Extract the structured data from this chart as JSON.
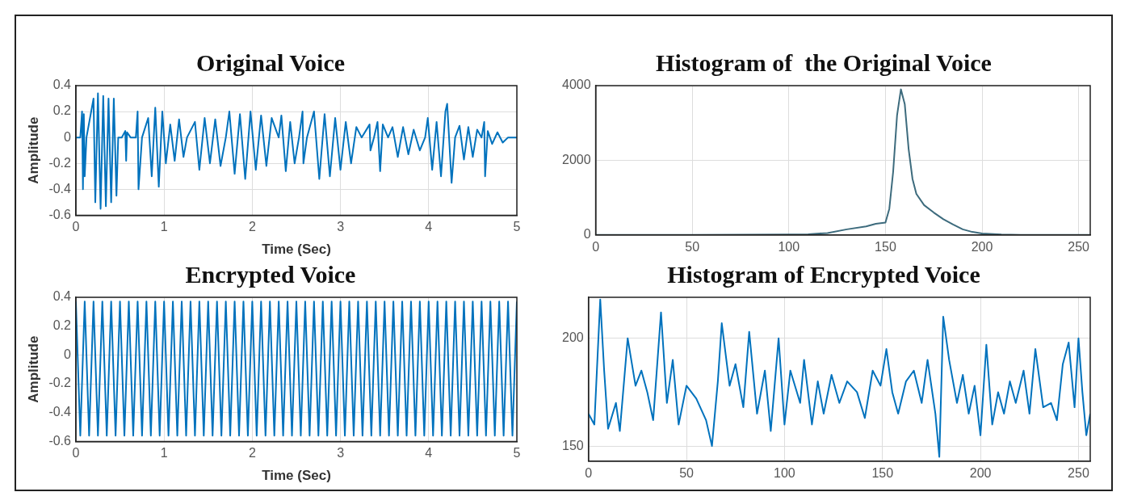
{
  "chart_data": [
    {
      "type": "line",
      "title": "Original Voice",
      "xlabel": "Time (Sec)",
      "ylabel": "Amplitude",
      "xlim": [
        0,
        5
      ],
      "ylim": [
        -0.6,
        0.4
      ],
      "xticks": [
        0,
        1,
        2,
        3,
        4,
        5
      ],
      "yticks": [
        -0.6,
        -0.4,
        -0.2,
        0,
        0.2,
        0.4
      ],
      "grid": true,
      "x": [
        0,
        0.05,
        0.07,
        0.08,
        0.09,
        0.1,
        0.12,
        0.2,
        0.22,
        0.25,
        0.28,
        0.31,
        0.34,
        0.37,
        0.4,
        0.43,
        0.46,
        0.48,
        0.52,
        0.56,
        0.57,
        0.58,
        0.62,
        0.68,
        0.7,
        0.71,
        0.75,
        0.82,
        0.86,
        0.9,
        0.94,
        0.98,
        1.02,
        1.07,
        1.12,
        1.17,
        1.22,
        1.26,
        1.35,
        1.4,
        1.46,
        1.52,
        1.58,
        1.64,
        1.7,
        1.74,
        1.8,
        1.86,
        1.92,
        1.98,
        2.04,
        2.1,
        2.16,
        2.22,
        2.3,
        2.33,
        2.38,
        2.43,
        2.48,
        2.53,
        2.57,
        2.58,
        2.62,
        2.7,
        2.76,
        2.82,
        2.88,
        2.94,
        3.0,
        3.06,
        3.12,
        3.18,
        3.24,
        3.33,
        3.34,
        3.38,
        3.42,
        3.45,
        3.48,
        3.54,
        3.59,
        3.65,
        3.71,
        3.77,
        3.83,
        3.9,
        3.96,
        3.99,
        4.04,
        4.09,
        4.14,
        4.19,
        4.21,
        4.26,
        4.3,
        4.35,
        4.4,
        4.45,
        4.5,
        4.55,
        4.6,
        4.63,
        4.64,
        4.67,
        4.72,
        4.78,
        4.84,
        4.9,
        5.0
      ],
      "series": [
        {
          "color": "#0072bd",
          "values": [
            0,
            0,
            0.2,
            -0.4,
            0.18,
            -0.3,
            0,
            0.3,
            -0.5,
            0.34,
            -0.55,
            0.32,
            -0.53,
            0.3,
            -0.5,
            0.3,
            -0.45,
            0,
            0,
            0.05,
            -0.18,
            0.04,
            0,
            0,
            0.2,
            -0.4,
            0,
            0.15,
            -0.3,
            0.23,
            -0.38,
            0.2,
            -0.2,
            0.1,
            -0.18,
            0.14,
            -0.15,
            0,
            0.12,
            -0.25,
            0.15,
            -0.2,
            0.14,
            -0.22,
            0,
            0.2,
            -0.28,
            0.18,
            -0.32,
            0.2,
            -0.25,
            0.17,
            -0.22,
            0.15,
            0,
            0.17,
            -0.26,
            0.12,
            -0.2,
            0,
            0.2,
            -0.2,
            0,
            0.2,
            -0.32,
            0.18,
            -0.3,
            0.15,
            -0.25,
            0.12,
            -0.2,
            0.08,
            0,
            0.1,
            -0.1,
            0,
            0.12,
            -0.26,
            0.1,
            0,
            0.08,
            -0.15,
            0.08,
            -0.13,
            0.06,
            -0.1,
            0,
            0.15,
            -0.25,
            0.12,
            -0.3,
            0.2,
            0.26,
            -0.35,
            0,
            0.09,
            -0.17,
            0.08,
            -0.15,
            0.06,
            0,
            0.12,
            -0.3,
            0.05,
            -0.05,
            0.04,
            -0.04,
            0,
            0
          ]
        }
      ]
    },
    {
      "type": "line",
      "title": "Histogram of  the Original Voice",
      "xlim": [
        0,
        256
      ],
      "ylim": [
        0,
        4000
      ],
      "xticks": [
        0,
        50,
        100,
        150,
        200,
        250
      ],
      "yticks": [
        0,
        2000,
        4000
      ],
      "grid": true,
      "x": [
        0,
        50,
        100,
        110,
        120,
        130,
        140,
        145,
        150,
        152,
        154,
        156,
        158,
        160,
        162,
        164,
        166,
        170,
        175,
        180,
        185,
        190,
        195,
        200,
        210,
        220,
        256
      ],
      "series": [
        {
          "color": "#3d6b7d",
          "values": [
            0,
            0,
            10,
            20,
            50,
            150,
            230,
            300,
            330,
            700,
            1700,
            3200,
            3900,
            3500,
            2300,
            1500,
            1100,
            800,
            600,
            420,
            280,
            150,
            80,
            40,
            10,
            0,
            0
          ]
        }
      ]
    },
    {
      "type": "line",
      "title": "Encrypted Voice",
      "xlabel": "Time (Sec)",
      "ylabel": "Amplitude",
      "xlim": [
        0,
        5
      ],
      "ylim": [
        -0.6,
        0.4
      ],
      "xticks": [
        0,
        1,
        2,
        3,
        4,
        5
      ],
      "yticks": [
        -0.6,
        -0.4,
        -0.2,
        0,
        0.2,
        0.4
      ],
      "grid": true,
      "x": [
        0,
        0.05,
        0.1,
        0.15,
        0.2,
        0.25,
        0.3,
        0.35,
        0.4,
        0.45,
        0.5,
        0.55,
        0.6,
        0.65,
        0.7,
        0.75,
        0.8,
        0.85,
        0.9,
        0.95,
        1,
        1.05,
        1.1,
        1.15,
        1.2,
        1.25,
        1.3,
        1.35,
        1.4,
        1.45,
        1.5,
        1.55,
        1.6,
        1.65,
        1.7,
        1.75,
        1.8,
        1.85,
        1.9,
        1.95,
        2,
        2.05,
        2.1,
        2.15,
        2.2,
        2.25,
        2.3,
        2.35,
        2.4,
        2.45,
        2.5,
        2.55,
        2.6,
        2.65,
        2.7,
        2.75,
        2.8,
        2.85,
        2.9,
        2.95,
        3,
        3.05,
        3.1,
        3.15,
        3.2,
        3.25,
        3.3,
        3.35,
        3.4,
        3.45,
        3.5,
        3.55,
        3.6,
        3.65,
        3.7,
        3.75,
        3.8,
        3.85,
        3.9,
        3.95,
        4,
        4.05,
        4.1,
        4.15,
        4.2,
        4.25,
        4.3,
        4.35,
        4.4,
        4.45,
        4.5,
        4.55,
        4.6,
        4.65,
        4.7,
        4.75,
        4.8,
        4.85,
        4.9,
        4.95,
        5
      ],
      "series": [
        {
          "color": "#0072bd",
          "values": [
            0.37,
            -0.56,
            0.37,
            -0.56,
            0.37,
            -0.56,
            0.37,
            -0.56,
            0.37,
            -0.56,
            0.37,
            -0.56,
            0.37,
            -0.56,
            0.37,
            -0.56,
            0.37,
            -0.56,
            0.37,
            -0.56,
            0.37,
            -0.56,
            0.37,
            -0.56,
            0.37,
            -0.56,
            0.37,
            -0.56,
            0.37,
            -0.56,
            0.37,
            -0.56,
            0.37,
            -0.56,
            0.37,
            -0.56,
            0.37,
            -0.56,
            0.37,
            -0.56,
            0.37,
            -0.56,
            0.37,
            -0.56,
            0.37,
            -0.56,
            0.37,
            -0.56,
            0.37,
            -0.56,
            0.37,
            -0.56,
            0.37,
            -0.56,
            0.37,
            -0.56,
            0.37,
            -0.56,
            0.37,
            -0.56,
            0.37,
            -0.56,
            0.37,
            -0.56,
            0.37,
            -0.56,
            0.37,
            -0.56,
            0.37,
            -0.56,
            0.37,
            -0.56,
            0.37,
            -0.56,
            0.37,
            -0.56,
            0.37,
            -0.56,
            0.37,
            -0.56,
            0.37,
            -0.56,
            0.37,
            -0.56,
            0.37,
            -0.56,
            0.37,
            -0.56,
            0.37,
            -0.56,
            0.37,
            -0.56,
            0.37,
            -0.56,
            0.37,
            -0.56,
            0.37,
            -0.56,
            0.37,
            -0.56,
            0.37
          ]
        }
      ]
    },
    {
      "type": "line",
      "title": "Histogram of Encrypted Voice",
      "xlim": [
        0,
        256
      ],
      "ylim": [
        143,
        219
      ],
      "xticks": [
        0,
        50,
        100,
        150,
        200,
        250
      ],
      "yticks": [
        150,
        200
      ],
      "grid": true,
      "x": [
        0,
        3,
        6,
        8,
        10,
        14,
        16,
        20,
        24,
        27,
        30,
        33,
        37,
        40,
        43,
        46,
        50,
        55,
        60,
        63,
        66,
        68,
        72,
        75,
        79,
        82,
        86,
        90,
        93,
        97,
        100,
        103,
        108,
        110,
        114,
        117,
        120,
        124,
        128,
        132,
        137,
        141,
        145,
        149,
        152,
        155,
        158,
        162,
        166,
        170,
        173,
        177,
        179,
        181,
        184,
        188,
        191,
        194,
        197,
        200,
        203,
        206,
        209,
        212,
        215,
        218,
        222,
        225,
        228,
        232,
        236,
        239,
        242,
        245,
        248,
        250,
        252,
        254,
        256
      ],
      "series": [
        {
          "color": "#0072bd",
          "values": [
            165,
            160,
            218,
            185,
            158,
            170,
            157,
            200,
            178,
            185,
            175,
            162,
            212,
            170,
            190,
            160,
            178,
            172,
            162,
            150,
            180,
            207,
            178,
            188,
            168,
            203,
            165,
            185,
            157,
            200,
            160,
            185,
            170,
            190,
            160,
            180,
            165,
            183,
            170,
            180,
            175,
            163,
            185,
            178,
            195,
            175,
            165,
            180,
            185,
            170,
            190,
            165,
            145,
            210,
            190,
            170,
            183,
            165,
            178,
            155,
            197,
            160,
            175,
            165,
            180,
            170,
            185,
            165,
            195,
            168,
            170,
            162,
            188,
            198,
            168,
            200,
            175,
            155,
            165
          ]
        }
      ]
    }
  ]
}
